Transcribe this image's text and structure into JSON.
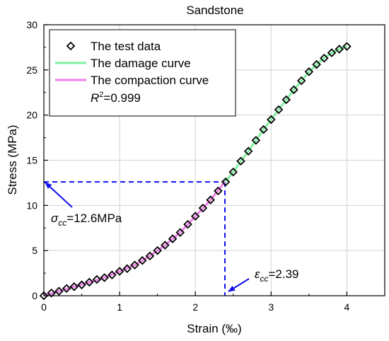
{
  "chart_data": {
    "type": "line",
    "title": "Sandstone",
    "xlabel": "Strain (‰)",
    "ylabel": "Stress (MPa)",
    "xlim": [
      0,
      4.5
    ],
    "ylim": [
      0,
      30
    ],
    "xticks": [
      0,
      1,
      2,
      3,
      4
    ],
    "yticks": [
      0,
      5,
      10,
      15,
      20,
      25,
      30
    ],
    "grid": true,
    "legend_position": "top-left",
    "series": [
      {
        "name": "The test data",
        "kind": "scatter",
        "marker": "diamond-open",
        "color": "#000000",
        "x": [
          0.0,
          0.1,
          0.2,
          0.3,
          0.4,
          0.5,
          0.6,
          0.7,
          0.8,
          0.9,
          1.0,
          1.1,
          1.2,
          1.3,
          1.4,
          1.5,
          1.6,
          1.7,
          1.8,
          1.9,
          2.0,
          2.1,
          2.2,
          2.3,
          2.4,
          2.5,
          2.6,
          2.7,
          2.8,
          2.9,
          3.0,
          3.1,
          3.2,
          3.3,
          3.4,
          3.5,
          3.6,
          3.7,
          3.8,
          3.9,
          4.0
        ],
        "y": [
          0.0,
          0.3,
          0.5,
          0.8,
          1.0,
          1.2,
          1.5,
          1.8,
          2.0,
          2.3,
          2.7,
          3.0,
          3.4,
          3.9,
          4.4,
          5.0,
          5.6,
          6.3,
          7.0,
          7.9,
          8.8,
          9.7,
          10.6,
          11.6,
          12.6,
          13.7,
          14.9,
          16.0,
          17.2,
          18.4,
          19.5,
          20.6,
          21.7,
          22.8,
          23.8,
          24.8,
          25.6,
          26.3,
          26.9,
          27.3,
          27.6
        ]
      },
      {
        "name": "The damage curve",
        "kind": "line",
        "color": "#80f0a0",
        "x": [
          2.39,
          2.5,
          2.6,
          2.7,
          2.8,
          2.9,
          3.0,
          3.1,
          3.2,
          3.3,
          3.4,
          3.5,
          3.6,
          3.7,
          3.8,
          3.9,
          4.0
        ],
        "y": [
          12.6,
          13.7,
          14.9,
          16.0,
          17.2,
          18.4,
          19.5,
          20.6,
          21.7,
          22.8,
          23.8,
          24.8,
          25.6,
          26.3,
          26.9,
          27.3,
          27.6
        ]
      },
      {
        "name": "The compaction curve",
        "kind": "line",
        "color": "#f080e8",
        "x": [
          0.0,
          0.2,
          0.4,
          0.6,
          0.8,
          1.0,
          1.2,
          1.4,
          1.6,
          1.8,
          2.0,
          2.2,
          2.39
        ],
        "y": [
          0.0,
          0.5,
          1.0,
          1.5,
          2.0,
          2.7,
          3.4,
          4.4,
          5.6,
          7.0,
          8.8,
          10.6,
          12.6
        ]
      }
    ],
    "r2_label": "=0.999",
    "critical_point": {
      "x": 2.39,
      "y": 12.6,
      "line_color": "#1010ee"
    },
    "annotations": {
      "sigma_value": "=12.6MPa",
      "eps_value": "=2.39"
    }
  }
}
